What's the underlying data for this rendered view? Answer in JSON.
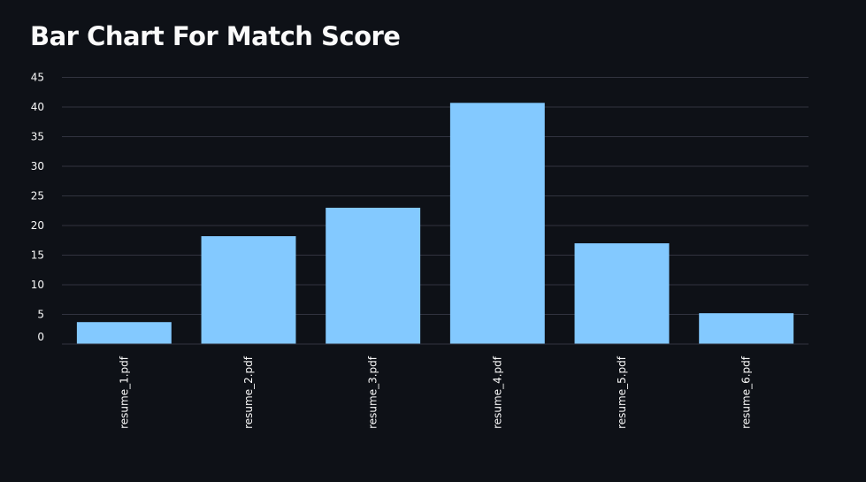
{
  "page": {
    "title": "Bar Chart For Match Score"
  },
  "chart_data": {
    "type": "bar",
    "title": "Bar Chart For Match Score",
    "categories": [
      "resume_1.pdf",
      "resume_2.pdf",
      "resume_3.pdf",
      "resume_4.pdf",
      "resume_5.pdf",
      "resume_6.pdf"
    ],
    "values": [
      3.7,
      18.2,
      23,
      40.7,
      17,
      5.2
    ],
    "xlabel": "",
    "ylabel": "",
    "ylim": [
      0,
      45
    ],
    "yticks": [
      0,
      5,
      10,
      15,
      20,
      25,
      30,
      35,
      40,
      45
    ],
    "grid": true,
    "legend": "none",
    "colors": {
      "bar": "#83c9ff",
      "grid": "#31333f",
      "text": "#fafafa",
      "background": "#0e1117"
    }
  }
}
